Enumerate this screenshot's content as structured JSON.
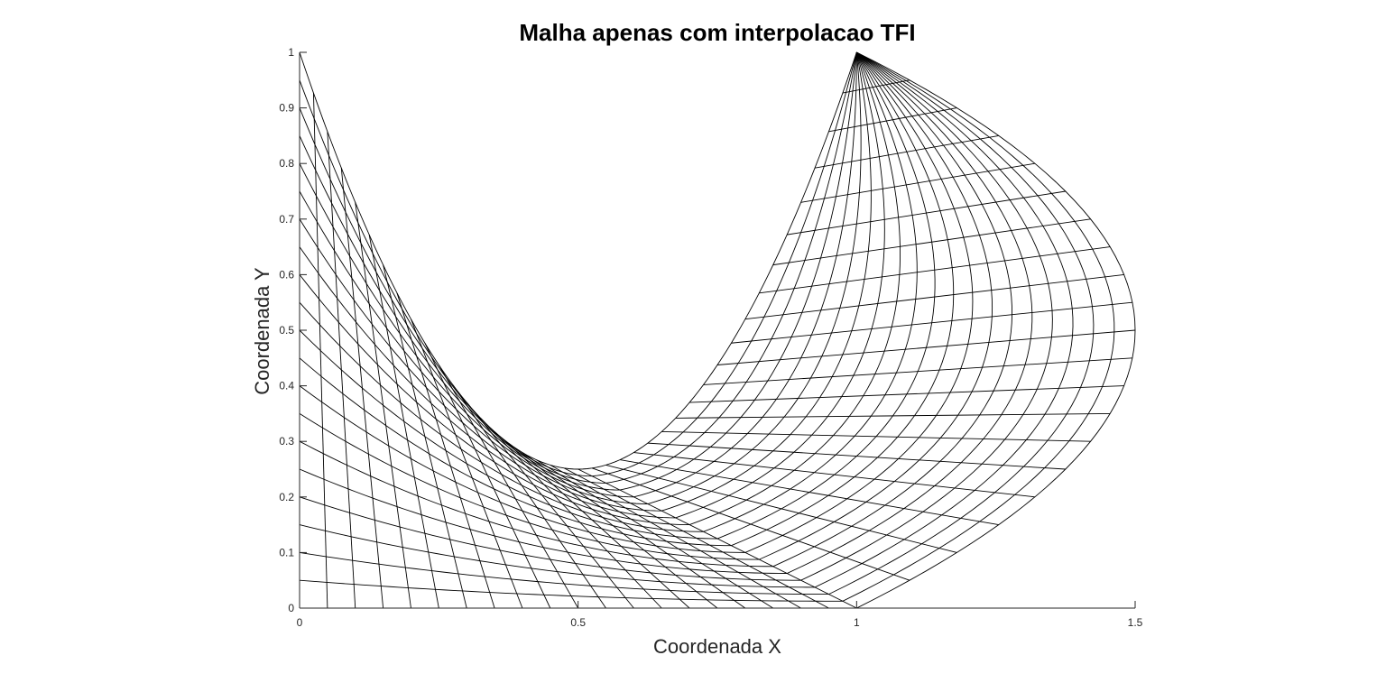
{
  "chart_data": {
    "type": "line",
    "title": "Malha apenas com interpolacao TFI",
    "xlabel": "Coordenada X",
    "ylabel": "Coordenada Y",
    "xlim": [
      0,
      1.5
    ],
    "ylim": [
      0,
      1
    ],
    "xticks": [
      0,
      0.5,
      1,
      1.5
    ],
    "xtick_labels": [
      "0",
      "0.5",
      "1",
      "1.5"
    ],
    "yticks": [
      0,
      0.1,
      0.2,
      0.3,
      0.4,
      0.5,
      0.6,
      0.7,
      0.8,
      0.9,
      1
    ],
    "ytick_labels": [
      "0",
      "0.1",
      "0.2",
      "0.3",
      "0.4",
      "0.5",
      "0.6",
      "0.7",
      "0.8",
      "0.9",
      "1"
    ],
    "grid": false,
    "legend": "none",
    "line_color": "#000000",
    "mesh": {
      "method": "transfinite interpolation",
      "xi_lines": 41,
      "eta_lines": 21,
      "boundaries": {
        "inner": {
          "from": [
            0,
            1
          ],
          "to": [
            0.5,
            0.25
          ],
          "shape": "parabola y=(x-0.5)^2*3+0.25 then (1-2x... )"
        },
        "bottom": {
          "from": [
            0,
            0
          ],
          "to": [
            1,
            0
          ]
        },
        "left": {
          "from": [
            0,
            0
          ],
          "to": [
            0,
            1
          ]
        },
        "outer": {
          "from": [
            1,
            0
          ],
          "via": [
            1.5,
            0.5
          ],
          "to": [
            1,
            1
          ]
        },
        "upper": {
          "from": [
            0.5,
            0.25
          ],
          "to": [
            1,
            1
          ]
        }
      }
    }
  }
}
